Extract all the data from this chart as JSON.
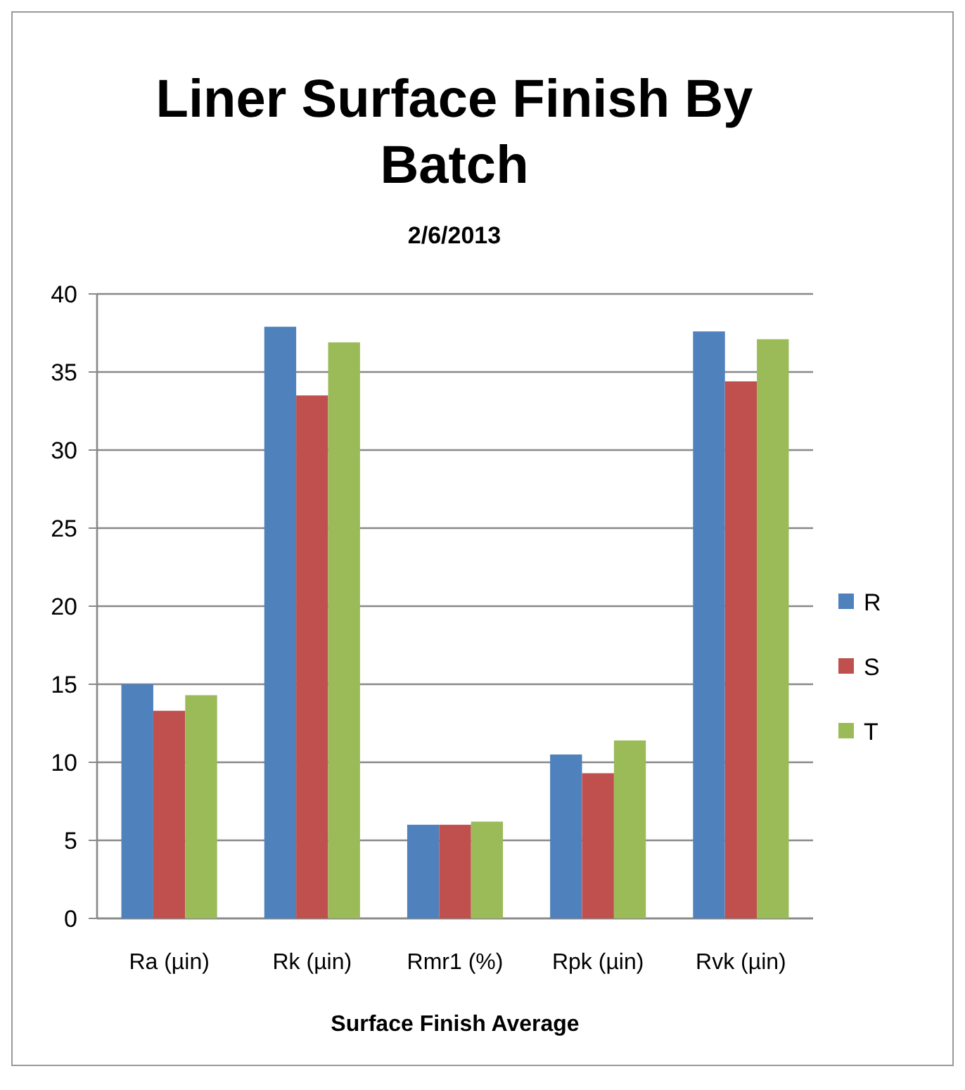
{
  "chart_data": {
    "type": "bar",
    "title": "Liner Surface Finish By Batch",
    "subtitle": "2/6/2013",
    "xlabel": "Surface Finish Average",
    "categories": [
      "Ra (µin)",
      "Rk (µin)",
      "Rmr1 (%)",
      "Rpk (µin)",
      "Rvk (µin)"
    ],
    "series": [
      {
        "name": "R",
        "color": "#4f81bd",
        "values": [
          15.0,
          37.9,
          6.0,
          10.5,
          37.6
        ]
      },
      {
        "name": "S",
        "color": "#c0504d",
        "values": [
          13.3,
          33.5,
          6.0,
          9.3,
          34.4
        ]
      },
      {
        "name": "T",
        "color": "#9bbb59",
        "values": [
          14.3,
          36.9,
          6.2,
          11.4,
          37.1
        ]
      }
    ],
    "ylim": [
      0,
      40
    ],
    "yticks": [
      0,
      5,
      10,
      15,
      20,
      25,
      30,
      35,
      40
    ],
    "grid": "y",
    "legend": "right"
  }
}
